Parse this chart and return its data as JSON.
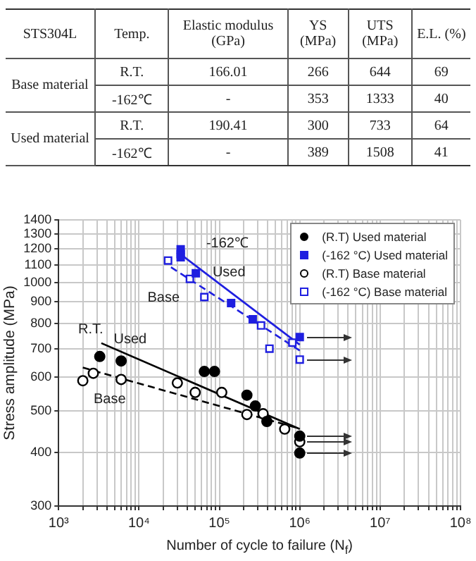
{
  "chart_data": [
    {
      "type": "other",
      "annotations": [
        "STS304L",
        "Temp.",
        "Elastic modulus (GPa)",
        "YS (MPa)",
        "UTS (MPa)",
        "E.L. (%)",
        "Base material",
        "R.T.",
        "166.01",
        "266",
        "644",
        "69",
        "-162℃",
        "-",
        "353",
        "1333",
        "40",
        "Used material",
        "R.T.",
        "190.41",
        "300",
        "733",
        "64",
        "-162℃",
        "-",
        "389",
        "1508",
        "41"
      ]
    },
    {
      "type": "scatter",
      "xlabel": "Number of cycle to failure (N$_{f}$)",
      "ylabel": "Stress amplitude (MPa)",
      "log": "xy",
      "grid": true,
      "legend": "top right",
      "xlim": [
        1000,
        100000000
      ],
      "xticks": [
        {
          "value": 1000,
          "label": "10³"
        },
        {
          "value": 2000,
          "label": null
        },
        {
          "value": 3000,
          "label": null
        },
        {
          "value": 4000,
          "label": null
        },
        {
          "value": 5000,
          "label": null
        },
        {
          "value": 6000,
          "label": null
        },
        {
          "value": 7000,
          "label": null
        },
        {
          "value": 8000,
          "label": null
        },
        {
          "value": 9000,
          "label": null
        },
        {
          "value": 10000,
          "label": "10⁴"
        },
        {
          "value": 20000,
          "label": null
        },
        {
          "value": 30000,
          "label": null
        },
        {
          "value": 40000,
          "label": null
        },
        {
          "value": 50000,
          "label": null
        },
        {
          "value": 60000,
          "label": null
        },
        {
          "value": 70000,
          "label": null
        },
        {
          "value": 80000,
          "label": null
        },
        {
          "value": 90000,
          "label": null
        },
        {
          "value": 100000,
          "label": "10⁵"
        },
        {
          "value": 200000,
          "label": null
        },
        {
          "value": 300000,
          "label": null
        },
        {
          "value": 400000,
          "label": null
        },
        {
          "value": 500000,
          "label": null
        },
        {
          "value": 600000,
          "label": null
        },
        {
          "value": 700000,
          "label": null
        },
        {
          "value": 800000,
          "label": null
        },
        {
          "value": 900000,
          "label": null
        },
        {
          "value": 1000000,
          "label": "10⁶"
        },
        {
          "value": 2000000,
          "label": null
        },
        {
          "value": 3000000,
          "label": null
        },
        {
          "value": 4000000,
          "label": null
        },
        {
          "value": 5000000,
          "label": null
        },
        {
          "value": 6000000,
          "label": null
        },
        {
          "value": 7000000,
          "label": null
        },
        {
          "value": 8000000,
          "label": null
        },
        {
          "value": 9000000,
          "label": null
        },
        {
          "value": 10000000,
          "label": "10⁷"
        },
        {
          "value": 20000000,
          "label": null
        },
        {
          "value": 30000000,
          "label": null
        },
        {
          "value": 40000000,
          "label": null
        },
        {
          "value": 50000000,
          "label": null
        },
        {
          "value": 60000000,
          "label": null
        },
        {
          "value": 70000000,
          "label": null
        },
        {
          "value": 80000000,
          "label": null
        },
        {
          "value": 90000000,
          "label": null
        },
        {
          "value": 100000000,
          "label": "10⁸"
        }
      ],
      "ylim": [
        300,
        1400
      ],
      "yticks": [
        300,
        400,
        500,
        600,
        700,
        800,
        900,
        1000,
        1100,
        1200,
        1300,
        1400
      ],
      "series": [
        {
          "name": "(R.T) Used material",
          "type": "scatter",
          "marker": "circle",
          "color": "#000000",
          "x": [
            3250,
            6000,
            65000,
            87000,
            220000,
            280000,
            390000,
            1000000,
            1000000
          ],
          "values": [
            671,
            655,
            619,
            619,
            545,
            514,
            473,
            437,
            399
          ]
        },
        {
          "name": "(-162 °C) Used material",
          "type": "scatter",
          "marker": "square",
          "color": "#1f1fe0",
          "x": [
            33000,
            33000,
            33000,
            51000,
            140000,
            260000,
            1000000
          ],
          "values": [
            1195,
            1165,
            1145,
            1050,
            895,
            820,
            745
          ]
        },
        {
          "name": "(R.T) Base material",
          "type": "scatter",
          "marker": "circle",
          "color": "#000000",
          "x": [
            2000,
            2700,
            6000,
            30000,
            50000,
            107000,
            220000,
            350000,
            650000,
            1000000
          ],
          "values": [
            589,
            613,
            593,
            582,
            553,
            553,
            491,
            493,
            454,
            424
          ]
        },
        {
          "name": "(-162 °C) Base material",
          "type": "scatter",
          "marker": "square",
          "color": "#1f1fe0",
          "x": [
            23000,
            43000,
            65000,
            330000,
            420000,
            810000,
            1000000
          ],
          "values": [
            1125,
            1019,
            924,
            793,
            700,
            723,
            660
          ]
        },
        {
          "type": "line",
          "line_style": "solid",
          "color": "#000000",
          "x": [
            3400,
            1000000
          ],
          "values": [
            721,
            454
          ]
        },
        {
          "type": "line",
          "line_style": "dashed",
          "color": "#000000",
          "x": [
            2000,
            1000000
          ],
          "values": [
            632,
            455
          ]
        },
        {
          "type": "line",
          "line_style": "solid",
          "color": "#1f1fe0",
          "x": [
            33000,
            1000000
          ],
          "values": [
            1163,
            715
          ]
        },
        {
          "type": "line",
          "line_style": "dashed",
          "color": "#1f1fe0",
          "x": [
            25000,
            1000000
          ],
          "values": [
            1085,
            693
          ]
        }
      ],
      "annotations": [
        "-162℃",
        "Used",
        "Base",
        "R.T.",
        "Used",
        "Base"
      ]
    }
  ]
}
